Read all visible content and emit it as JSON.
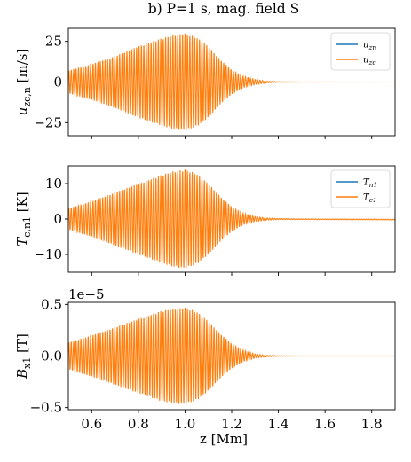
{
  "figure_title": "b) P=1 s, mag. field S",
  "xlabel": "z [Mm]",
  "colors": {
    "series_1": "#1f77b4",
    "series_2": "#ff7f0e"
  },
  "chart_data": [
    {
      "type": "line",
      "ylabel": "u_{zc,n} [m/s]",
      "ylabel_main": "u",
      "ylabel_sub": "zc,n",
      "ylabel_unit": " [m/s]",
      "xlim": [
        0.5,
        1.9
      ],
      "ylim": [
        -33,
        33
      ],
      "xticks": [
        0.6,
        0.8,
        1.0,
        1.2,
        1.4,
        1.6,
        1.8
      ],
      "yticks": [
        -25,
        0,
        25
      ],
      "ytick_labels": [
        "−25",
        "0",
        "25"
      ],
      "offset_text": "",
      "legend_position": "top-right",
      "series": [
        {
          "name": "u_zn",
          "main": "u",
          "sub": "zn",
          "color": "#1f77b4"
        },
        {
          "name": "u_zc",
          "main": "u",
          "sub": "zc",
          "color": "#ff7f0e"
        }
      ],
      "envelope": {
        "x": [
          0.5,
          0.6,
          0.7,
          0.8,
          0.9,
          0.95,
          1.0,
          1.05,
          1.1,
          1.15,
          1.2,
          1.25,
          1.3,
          1.35,
          1.4,
          1.5,
          1.6,
          1.7,
          1.8,
          1.9
        ],
        "amplitude": [
          7,
          11,
          16,
          22,
          27,
          29,
          30,
          27.5,
          22,
          14,
          7.5,
          3.5,
          1.6,
          0.6,
          0.2,
          0.05,
          0.02,
          0.01,
          0.01,
          0.01
        ]
      }
    },
    {
      "type": "line",
      "ylabel": "T_{c,n1} [K]",
      "ylabel_main": "T",
      "ylabel_sub": "c,n1",
      "ylabel_unit": " [K]",
      "xlim": [
        0.5,
        1.9
      ],
      "ylim": [
        -15,
        15
      ],
      "xticks": [
        0.6,
        0.8,
        1.0,
        1.2,
        1.4,
        1.6,
        1.8
      ],
      "yticks": [
        -10,
        0,
        10
      ],
      "ytick_labels": [
        "−10",
        "0",
        "10"
      ],
      "offset_text": "",
      "legend_position": "top-right",
      "series": [
        {
          "name": "T_n1",
          "main": "T",
          "sub": "n1",
          "color": "#1f77b4"
        },
        {
          "name": "T_c1",
          "main": "T",
          "sub": "c1",
          "color": "#ff7f0e"
        }
      ],
      "envelope": {
        "x": [
          0.5,
          0.6,
          0.7,
          0.8,
          0.9,
          0.95,
          1.0,
          1.05,
          1.1,
          1.15,
          1.2,
          1.25,
          1.3,
          1.35,
          1.4,
          1.5,
          1.6,
          1.7,
          1.8,
          1.9
        ],
        "amplitude": [
          3,
          5,
          7.5,
          10,
          12.5,
          13.5,
          14,
          12.8,
          10,
          6.5,
          3.5,
          1.6,
          0.7,
          0.3,
          0.15,
          0.1,
          0.1,
          0.1,
          0.1,
          0.1
        ]
      },
      "baseline": {
        "x": [
          1.3,
          1.9
        ],
        "y": [
          0,
          -0.15
        ]
      }
    },
    {
      "type": "line",
      "ylabel": "B_{x1} [T]",
      "ylabel_main": "B",
      "ylabel_sub": "x1",
      "ylabel_unit": " [T]",
      "xlim": [
        0.5,
        1.9
      ],
      "ylim": [
        -0.52,
        0.52
      ],
      "xticks": [
        0.6,
        0.8,
        1.0,
        1.2,
        1.4,
        1.6,
        1.8
      ],
      "yticks": [
        -0.5,
        0,
        0.5
      ],
      "ytick_labels": [
        "−0.5",
        "0.0",
        "0.5"
      ],
      "offset_text": "1e−5",
      "series": [
        {
          "name": "B_x1",
          "color": "#ff7f0e"
        }
      ],
      "envelope": {
        "x": [
          0.5,
          0.6,
          0.7,
          0.8,
          0.9,
          0.95,
          1.0,
          1.05,
          1.1,
          1.15,
          1.2,
          1.25,
          1.3,
          1.35,
          1.4,
          1.5,
          1.6,
          1.7,
          1.8,
          1.9
        ],
        "amplitude": [
          0.13,
          0.2,
          0.28,
          0.36,
          0.44,
          0.46,
          0.47,
          0.43,
          0.34,
          0.22,
          0.12,
          0.055,
          0.02,
          0.008,
          0.003,
          0.001,
          0.001,
          0.001,
          0.001,
          0.001
        ]
      }
    }
  ]
}
